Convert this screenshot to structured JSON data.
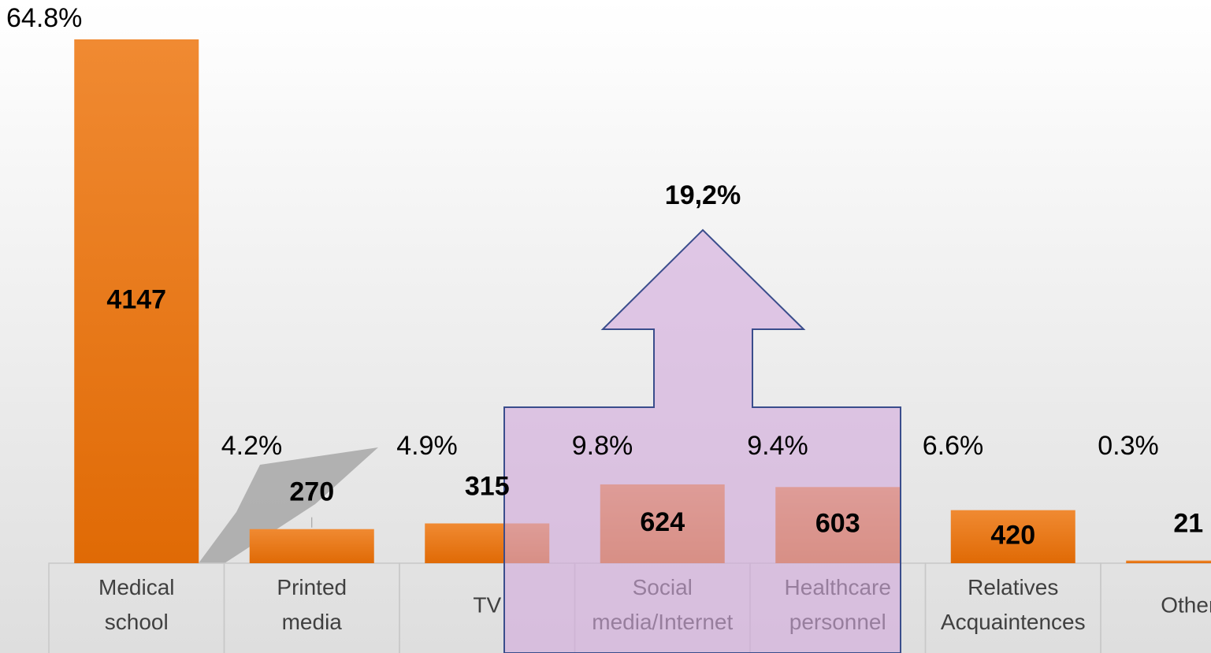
{
  "chart_data": {
    "type": "bar",
    "categories": [
      "Medical school",
      "Printed media",
      "TV",
      "Social media/Internet",
      "Healthcare personnel",
      "Relatives Acquaintences",
      "Other"
    ],
    "values": [
      4147,
      270,
      315,
      624,
      603,
      420,
      21
    ],
    "percentages": [
      64.8,
      4.2,
      4.9,
      9.8,
      9.4,
      6.6,
      0.3
    ],
    "percentage_labels": [
      "64.8%",
      "4.2%",
      "4.9%",
      "9.8%",
      "9.4%",
      "6.6%",
      "0.3%"
    ],
    "color": "#e8761a",
    "ylim": [
      0,
      4147
    ],
    "annotation": "19,2%"
  }
}
